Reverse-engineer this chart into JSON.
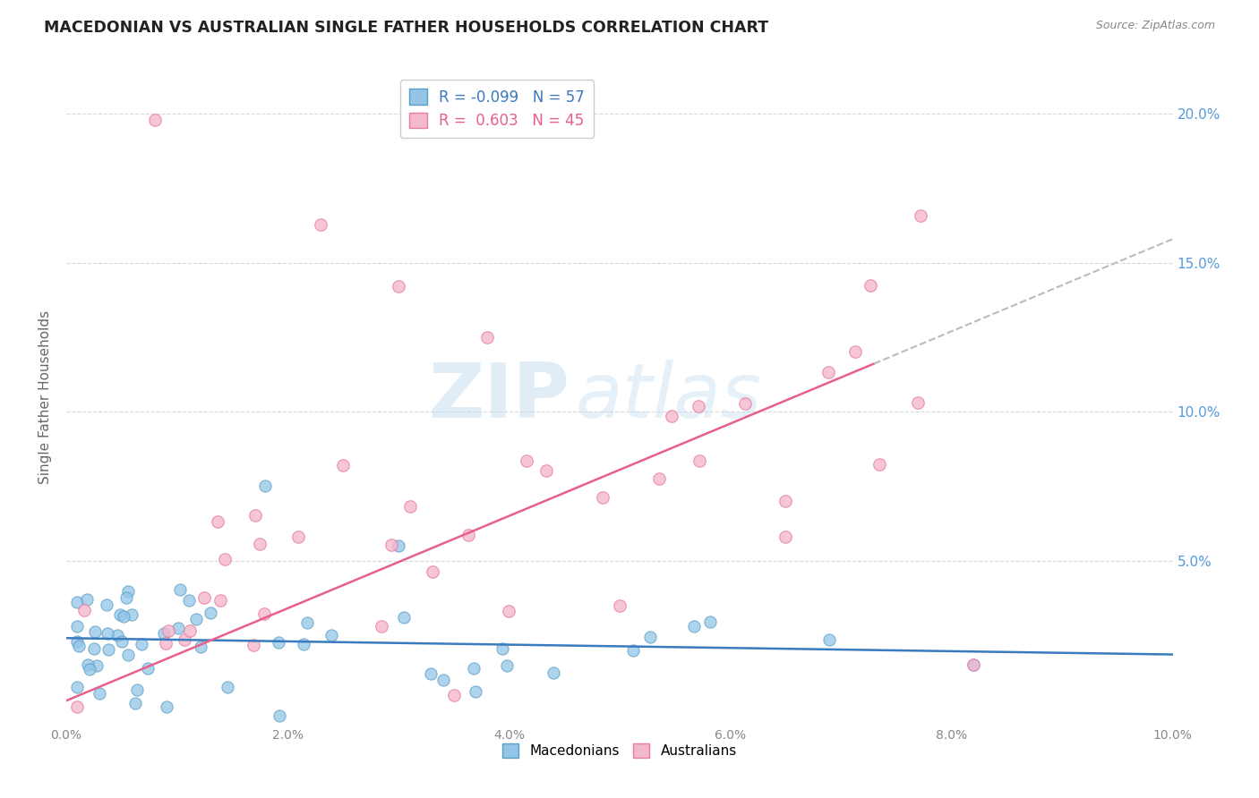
{
  "title": "MACEDONIAN VS AUSTRALIAN SINGLE FATHER HOUSEHOLDS CORRELATION CHART",
  "source": "Source: ZipAtlas.com",
  "xlabel": "",
  "ylabel": "Single Father Households",
  "xlim": [
    0.0,
    0.1
  ],
  "ylim": [
    -0.005,
    0.215
  ],
  "x_ticks": [
    0.0,
    0.02,
    0.04,
    0.06,
    0.08,
    0.1
  ],
  "x_tick_labels": [
    "0.0%",
    "2.0%",
    "4.0%",
    "6.0%",
    "8.0%",
    "10.0%"
  ],
  "y_ticks": [
    0.0,
    0.05,
    0.1,
    0.15,
    0.2
  ],
  "y_tick_labels": [
    "",
    "5.0%",
    "10.0%",
    "15.0%",
    "20.0%"
  ],
  "macedonian_color": "#92c5e8",
  "australian_color": "#f4b8cc",
  "macedonian_edge": "#5a9dc5",
  "australian_edge": "#e87ca0",
  "trend_macedonian_color": "#3a7abf",
  "trend_australian_color": "#e8608a",
  "R_macedonian": -0.099,
  "N_macedonian": 57,
  "R_australian": 0.603,
  "N_australian": 45,
  "watermark_zip": "ZIP",
  "watermark_atlas": "atlas",
  "background_color": "#ffffff",
  "grid_color": "#d8d8d8",
  "trend_dash_color": "#bbbbbb",
  "legend_border_color": "#cccccc",
  "title_color": "#222222",
  "source_color": "#888888",
  "axis_label_color": "#666666",
  "tick_color": "#888888",
  "right_tick_color": "#5599dd"
}
